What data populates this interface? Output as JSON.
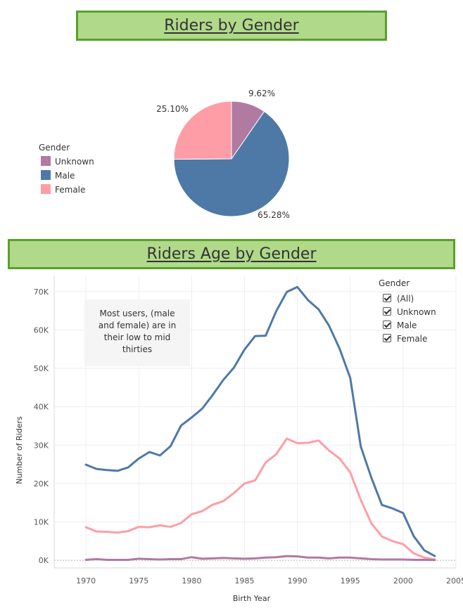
{
  "pie_title": "Riders by Gender",
  "line_title": "Riders Age by Gender",
  "colors": {
    "unknown": "#b07aa1",
    "male": "#4e79a7",
    "female": "#ff9da7",
    "title_bg": "#b0d98a",
    "title_border": "#5aa02c"
  },
  "pie_legend": {
    "title": "Gender",
    "items": [
      {
        "label": "Unknown",
        "color": "#b07aa1"
      },
      {
        "label": "Male",
        "color": "#4e79a7"
      },
      {
        "label": "Female",
        "color": "#ff9da7"
      }
    ]
  },
  "line_filter": {
    "title": "Gender",
    "items": [
      {
        "label": "(All)",
        "checked": true
      },
      {
        "label": "Unknown",
        "checked": true
      },
      {
        "label": "Male",
        "checked": true
      },
      {
        "label": "Female",
        "checked": true
      }
    ]
  },
  "annotation": "Most users, (male and female) are in their low to mid thirties",
  "chart_data": [
    {
      "type": "pie",
      "title": "Riders by Gender",
      "categories": [
        "Unknown",
        "Male",
        "Female"
      ],
      "values": [
        9.62,
        65.28,
        25.1
      ],
      "labels": [
        "9.62%",
        "65.28%",
        "25.10%"
      ],
      "legend": "left"
    },
    {
      "type": "line",
      "title": "Riders Age by Gender",
      "xlabel": "Birth Year",
      "ylabel": "Number of Riders",
      "xlim": [
        1967,
        2005
      ],
      "ylim": [
        -2000,
        74000
      ],
      "x_ticks": [
        "1970",
        "1975",
        "1980",
        "1985",
        "1990",
        "1995",
        "2000",
        "2005"
      ],
      "y_ticks": [
        "0K",
        "10K",
        "20K",
        "30K",
        "40K",
        "50K",
        "60K",
        "70K"
      ],
      "grid": true,
      "legend": "top-right",
      "x": [
        1970,
        1971,
        1972,
        1973,
        1974,
        1975,
        1976,
        1977,
        1978,
        1979,
        1980,
        1981,
        1982,
        1983,
        1984,
        1985,
        1986,
        1987,
        1988,
        1989,
        1990,
        1991,
        1992,
        1993,
        1994,
        1995,
        1996,
        1997,
        1998,
        1999,
        2000,
        2001,
        2002,
        2003
      ],
      "series": [
        {
          "name": "Male",
          "color": "#4e79a7",
          "values": [
            24900,
            23800,
            23500,
            23300,
            24200,
            26500,
            28200,
            27300,
            29700,
            35100,
            37200,
            39500,
            43100,
            47000,
            50200,
            54900,
            58400,
            58500,
            64900,
            69900,
            71200,
            67800,
            65400,
            61100,
            55100,
            47500,
            29600,
            21500,
            14400,
            13500,
            12300,
            6300,
            2600,
            1100
          ]
        },
        {
          "name": "Female",
          "color": "#ff9da7",
          "values": [
            8600,
            7500,
            7400,
            7200,
            7600,
            8700,
            8600,
            9100,
            8700,
            9700,
            12000,
            12800,
            14500,
            15400,
            17500,
            20000,
            20800,
            25500,
            27600,
            31700,
            30500,
            30600,
            31200,
            28600,
            26500,
            22900,
            15700,
            9600,
            6200,
            5000,
            4200,
            1800,
            700,
            200
          ]
        },
        {
          "name": "Unknown",
          "color": "#b07aa1",
          "values": [
            100,
            300,
            100,
            100,
            100,
            400,
            300,
            200,
            300,
            300,
            800,
            400,
            500,
            600,
            500,
            400,
            500,
            700,
            800,
            1100,
            1000,
            700,
            700,
            500,
            700,
            700,
            500,
            300,
            200,
            200,
            200,
            100,
            100,
            50
          ]
        }
      ]
    }
  ]
}
